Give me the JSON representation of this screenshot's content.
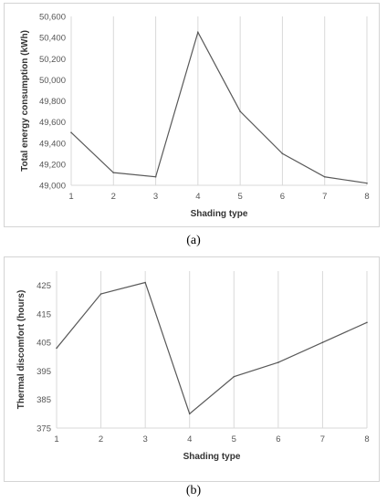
{
  "chart_data": [
    {
      "type": "line",
      "x": [
        1,
        2,
        3,
        4,
        5,
        6,
        7,
        8
      ],
      "values": [
        49500,
        49120,
        49080,
        50450,
        49700,
        49300,
        49080,
        49020
      ],
      "xlabel": "Shading type",
      "ylabel": "Total energy consumption (kWh)",
      "ylim": [
        49000,
        50600
      ],
      "yticks": [
        49000,
        49200,
        49400,
        49600,
        49800,
        50000,
        50200,
        50400,
        50600
      ],
      "ytick_labels": [
        "49,000",
        "49,200",
        "49,400",
        "49,600",
        "49,800",
        "50,000",
        "50,200",
        "50,400",
        "50,600"
      ],
      "xticks": [
        "1",
        "2",
        "3",
        "4",
        "5",
        "6",
        "7",
        "8"
      ],
      "grid": "vertical",
      "color": "#595959",
      "caption": "(a)"
    },
    {
      "type": "line",
      "x": [
        1,
        2,
        3,
        4,
        5,
        6,
        7,
        8
      ],
      "values": [
        403,
        422,
        426,
        380,
        393,
        398,
        405,
        412
      ],
      "xlabel": "Shading type",
      "ylabel": "Thermal discomfort (hours)",
      "ylim": [
        375,
        430
      ],
      "yticks": [
        375,
        385,
        395,
        405,
        415,
        425
      ],
      "ytick_labels": [
        "375",
        "385",
        "395",
        "405",
        "415",
        "425"
      ],
      "xticks": [
        "1",
        "2",
        "3",
        "4",
        "5",
        "6",
        "7",
        "8"
      ],
      "grid": "vertical",
      "color": "#595959",
      "caption": "(b)"
    }
  ]
}
